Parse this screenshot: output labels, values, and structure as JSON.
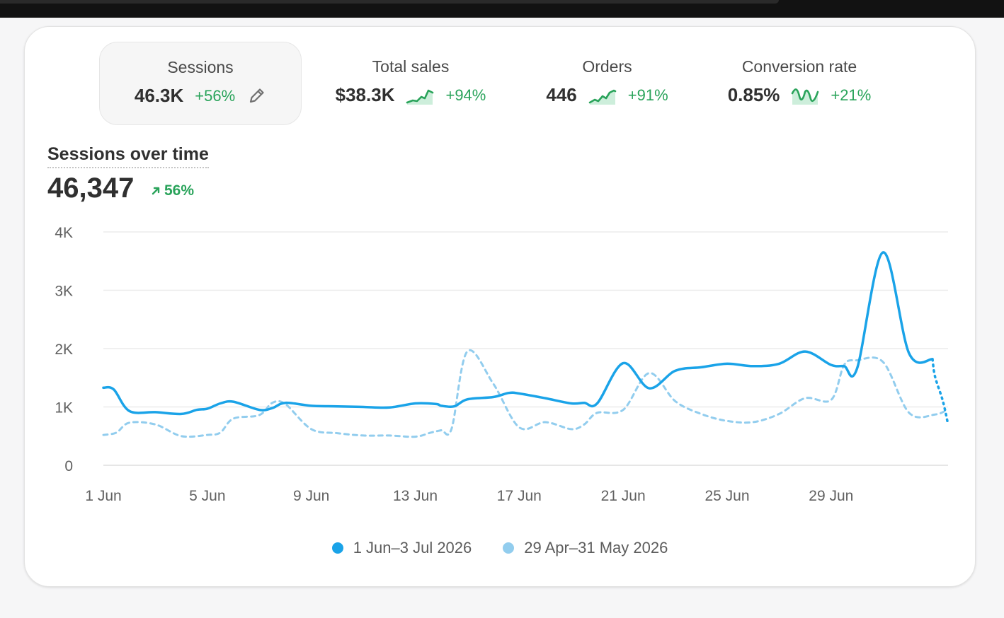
{
  "metrics": [
    {
      "label": "Sessions",
      "value": "46.3K",
      "change": "+56%",
      "icon": "pencil-icon"
    },
    {
      "label": "Total sales",
      "value": "$38.3K",
      "change": "+94%",
      "icon": "sparkline-icon"
    },
    {
      "label": "Orders",
      "value": "446",
      "change": "+91%",
      "icon": "sparkline-icon"
    },
    {
      "label": "Conversion rate",
      "value": "0.85%",
      "change": "+21%",
      "icon": "sparkline-icon"
    }
  ],
  "section": {
    "title": "Sessions over time",
    "total": "46,347",
    "change": "56%"
  },
  "colors": {
    "primary": "#1aa3e8",
    "comparison": "#92cdee",
    "positive": "#29a35a",
    "grid": "#ebebeb"
  },
  "chart_data": {
    "type": "line",
    "yticks": [
      "0",
      "1K",
      "2K",
      "3K",
      "4K"
    ],
    "ylim": [
      0,
      4000
    ],
    "xlim": [
      0,
      32.5
    ],
    "xtick_labels": [
      "1 Jun",
      "5 Jun",
      "9 Jun",
      "13 Jun",
      "17 Jun",
      "21 Jun",
      "25 Jun",
      "29 Jun"
    ],
    "xtick_positions": [
      0,
      4,
      8,
      12,
      16,
      20,
      24,
      28
    ],
    "grid": true,
    "legend_position": "bottom",
    "series": [
      {
        "name": "1 Jun–3 Jul 2026",
        "style": "solid",
        "x": [
          0,
          0.4,
          1,
          2,
          3,
          3.6,
          4,
          4.5,
          5,
          6,
          6.5,
          7,
          8,
          9,
          10,
          11,
          12,
          12.8,
          13,
          13.5,
          14,
          15,
          15.6,
          16,
          17,
          18,
          18.5,
          19,
          20,
          21,
          22,
          23,
          24,
          25,
          26,
          27,
          28,
          28.5,
          29,
          30,
          31,
          31.9
        ],
        "values": [
          1330,
          1300,
          930,
          910,
          880,
          950,
          970,
          1060,
          1090,
          950,
          980,
          1070,
          1020,
          1010,
          1000,
          990,
          1060,
          1050,
          1020,
          1010,
          1130,
          1170,
          1240,
          1230,
          1150,
          1060,
          1070,
          1060,
          1750,
          1320,
          1620,
          1680,
          1740,
          1700,
          1740,
          1950,
          1720,
          1700,
          1660,
          3650,
          1920,
          1820
        ],
        "x_tail": [
          32.0,
          32.3,
          32.5
        ],
        "values_tail": [
          1520,
          1100,
          700
        ]
      },
      {
        "name": "29 Apr–31 May 2026",
        "style": "dashed",
        "x": [
          0,
          0.5,
          1,
          2,
          3,
          4,
          4.5,
          5,
          6,
          6.5,
          7,
          8,
          9,
          10,
          11,
          12,
          12.6,
          13,
          13.4,
          14,
          15,
          16,
          17,
          18,
          18.5,
          19,
          20,
          21,
          22,
          23,
          24,
          25,
          26,
          27,
          28,
          28.5,
          29,
          30,
          31,
          32,
          32.5
        ],
        "values": [
          520,
          560,
          730,
          700,
          500,
          520,
          560,
          800,
          860,
          1070,
          1050,
          620,
          550,
          510,
          510,
          490,
          560,
          600,
          630,
          1950,
          1400,
          650,
          740,
          620,
          700,
          900,
          950,
          1580,
          1100,
          880,
          760,
          740,
          880,
          1150,
          1120,
          1720,
          1800,
          1770,
          900,
          870,
          960
        ]
      }
    ]
  }
}
